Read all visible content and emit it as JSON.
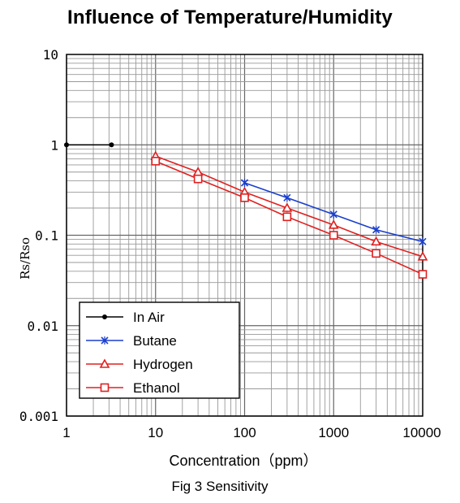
{
  "page_title": "Influence of Temperature/Humidity",
  "caption": "Fig 3 Sensitivity",
  "chart_data": {
    "type": "line",
    "title": "",
    "xlabel": "Concentration（ppm）",
    "ylabel": "Rs/Rso",
    "x_scale": "log",
    "y_scale": "log",
    "xlim": [
      1,
      10000
    ],
    "ylim": [
      0.001,
      10
    ],
    "x_ticks": [
      1,
      10,
      100,
      1000,
      10000
    ],
    "x_tick_labels": [
      "1",
      "10",
      "100",
      "1000",
      "10000"
    ],
    "y_ticks": [
      0.001,
      0.01,
      0.1,
      1,
      10
    ],
    "y_tick_labels": [
      "0.001",
      "0.01",
      "0.1",
      "1",
      "10"
    ],
    "grid": true,
    "legend_position": "bottom-left",
    "series": [
      {
        "name": "In Air",
        "color": "#000000",
        "marker": "dot",
        "x": [
          1,
          3.2
        ],
        "y": [
          1,
          1
        ]
      },
      {
        "name": "Butane",
        "color": "#1a3fcc",
        "marker": "x",
        "x": [
          100,
          300,
          1000,
          3000,
          10000
        ],
        "y": [
          0.38,
          0.26,
          0.17,
          0.115,
          0.085
        ]
      },
      {
        "name": "Hydrogen",
        "color": "#e02020",
        "marker": "triangle",
        "x": [
          10,
          30,
          100,
          300,
          1000,
          3000,
          10000
        ],
        "y": [
          0.75,
          0.5,
          0.3,
          0.2,
          0.13,
          0.085,
          0.058
        ]
      },
      {
        "name": "Ethanol",
        "color": "#e02020",
        "marker": "square",
        "x": [
          10,
          30,
          100,
          300,
          1000,
          3000,
          10000
        ],
        "y": [
          0.66,
          0.42,
          0.26,
          0.16,
          0.1,
          0.063,
          0.037
        ]
      }
    ]
  }
}
